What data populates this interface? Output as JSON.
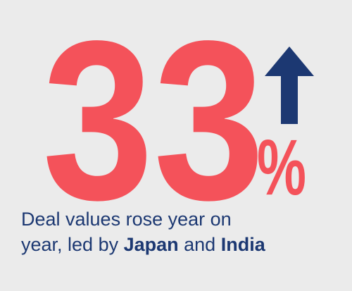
{
  "headline": {
    "value": "33",
    "unit": "%",
    "value_color": "#f4525a",
    "arrow_color": "#1c3872",
    "arrow_icon": "up-arrow-icon"
  },
  "caption": {
    "line1": "Deal values rose year on",
    "line2_prefix": "year, led by ",
    "highlight_1": "Japan",
    "connector": " and ",
    "highlight_2": "India",
    "text_color": "#1c3872"
  }
}
